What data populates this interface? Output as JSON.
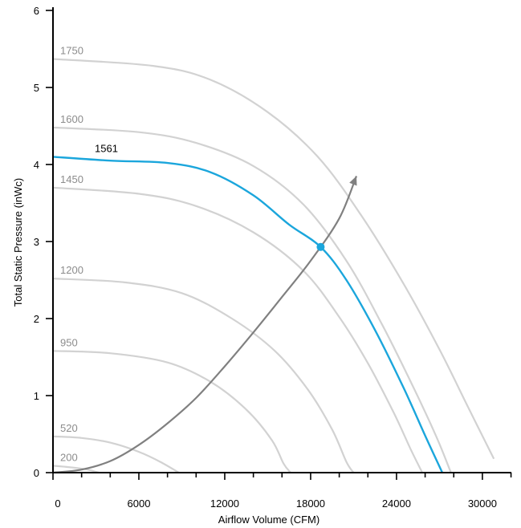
{
  "chart_data": {
    "type": "line",
    "title": "",
    "xlabel": "Airflow Volume (CFM)",
    "ylabel": "Total Static Pressure (inWc)",
    "xlim": [
      0,
      32000
    ],
    "ylim": [
      0,
      6
    ],
    "xticks": [
      0,
      6000,
      12000,
      18000,
      24000,
      30000
    ],
    "xtick_labels": [
      "0",
      "6000",
      "12000",
      "18000",
      "24000",
      "30000"
    ],
    "yticks": [
      0,
      1,
      2,
      3,
      4,
      5,
      6
    ],
    "ytick_labels": [
      "0",
      "1",
      "2",
      "3",
      "4",
      "5",
      "6"
    ],
    "grid": false,
    "legend": "none",
    "colors": {
      "speed_curves": "#d2d2d2",
      "speed_labels": "#8c8c8c",
      "operating_curve": "#1ba6dc",
      "system_curve": "#808080",
      "axis": "#000000"
    },
    "series": [
      {
        "name": "200",
        "style": "speed",
        "points": [
          [
            0,
            0.09
          ],
          [
            1200,
            0.07
          ],
          [
            2400,
            0.04
          ],
          [
            3200,
            0.0
          ]
        ]
      },
      {
        "name": "520",
        "style": "speed",
        "points": [
          [
            0,
            0.47
          ],
          [
            2000,
            0.45
          ],
          [
            4000,
            0.39
          ],
          [
            6000,
            0.27
          ],
          [
            7500,
            0.14
          ],
          [
            8800,
            0.0
          ]
        ]
      },
      {
        "name": "950",
        "style": "speed",
        "points": [
          [
            0,
            1.58
          ],
          [
            4000,
            1.55
          ],
          [
            8000,
            1.43
          ],
          [
            11000,
            1.18
          ],
          [
            13500,
            0.82
          ],
          [
            15300,
            0.42
          ],
          [
            16100,
            0.12
          ],
          [
            16600,
            0.0
          ]
        ]
      },
      {
        "name": "1200",
        "style": "speed",
        "points": [
          [
            0,
            2.52
          ],
          [
            5000,
            2.47
          ],
          [
            9000,
            2.33
          ],
          [
            12500,
            2.0
          ],
          [
            15500,
            1.58
          ],
          [
            17800,
            1.08
          ],
          [
            19500,
            0.56
          ],
          [
            20500,
            0.14
          ],
          [
            21000,
            0.0
          ]
        ]
      },
      {
        "name": "1450",
        "style": "speed",
        "points": [
          [
            0,
            3.7
          ],
          [
            6000,
            3.62
          ],
          [
            10000,
            3.46
          ],
          [
            14000,
            3.12
          ],
          [
            17500,
            2.62
          ],
          [
            20000,
            2.02
          ],
          [
            22000,
            1.42
          ],
          [
            23800,
            0.78
          ],
          [
            25000,
            0.3
          ],
          [
            25800,
            0.0
          ]
        ]
      },
      {
        "name": "1561",
        "style": "operating",
        "points": [
          [
            0,
            4.1
          ],
          [
            4000,
            4.05
          ],
          [
            8000,
            4.02
          ],
          [
            11000,
            3.9
          ],
          [
            14000,
            3.6
          ],
          [
            16500,
            3.22
          ],
          [
            18700,
            2.93
          ],
          [
            20500,
            2.5
          ],
          [
            22500,
            1.85
          ],
          [
            24500,
            1.1
          ],
          [
            26000,
            0.48
          ],
          [
            27200,
            0.0
          ]
        ]
      },
      {
        "name": "1600",
        "style": "speed",
        "points": [
          [
            0,
            4.48
          ],
          [
            6000,
            4.42
          ],
          [
            10000,
            4.28
          ],
          [
            14000,
            3.98
          ],
          [
            17500,
            3.48
          ],
          [
            20500,
            2.75
          ],
          [
            23000,
            1.92
          ],
          [
            25200,
            1.1
          ],
          [
            26800,
            0.46
          ],
          [
            27800,
            0.0
          ]
        ]
      },
      {
        "name": "1750",
        "style": "speed",
        "points": [
          [
            0,
            5.37
          ],
          [
            7000,
            5.28
          ],
          [
            11000,
            5.1
          ],
          [
            15000,
            4.68
          ],
          [
            18500,
            4.1
          ],
          [
            21500,
            3.35
          ],
          [
            24500,
            2.45
          ],
          [
            27000,
            1.6
          ],
          [
            29000,
            0.85
          ],
          [
            30800,
            0.18
          ]
        ]
      }
    ],
    "system_curve": {
      "name": "system",
      "points": [
        [
          0,
          0.0
        ],
        [
          2000,
          0.04
        ],
        [
          4000,
          0.15
        ],
        [
          6000,
          0.36
        ],
        [
          8000,
          0.64
        ],
        [
          10000,
          0.97
        ],
        [
          12000,
          1.38
        ],
        [
          14000,
          1.82
        ],
        [
          16000,
          2.28
        ],
        [
          18000,
          2.75
        ],
        [
          20000,
          3.3
        ],
        [
          21200,
          3.85
        ]
      ]
    },
    "operating_point": {
      "x": 18700,
      "y": 2.93
    }
  }
}
